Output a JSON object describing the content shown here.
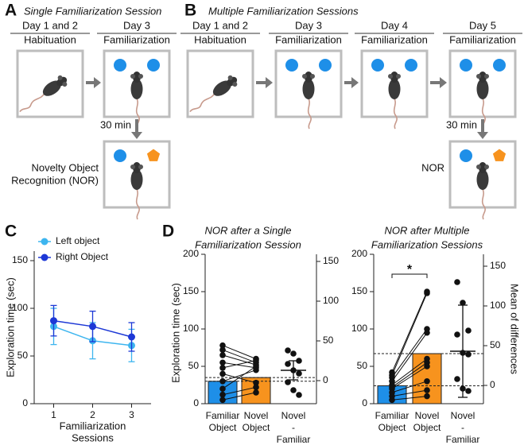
{
  "panel_a": {
    "letter": "A",
    "title": "Single Familiarization Session",
    "stages": [
      {
        "day": "Day 1 and 2",
        "phase": "Habituation"
      },
      {
        "day": "Day 3",
        "phase": "Familiarization"
      }
    ],
    "delay": "30 min",
    "test": [
      "Novelty Object",
      "Recognition (NOR)"
    ]
  },
  "panel_b": {
    "letter": "B",
    "title": "Multiple Familiarization Sessions",
    "stages": [
      {
        "day": "Day 1 and 2",
        "phase": "Habituation"
      },
      {
        "day": "Day 3",
        "phase": "Familiarization"
      },
      {
        "day": "Day 4",
        "phase": "Familiarization"
      },
      {
        "day": "Day 5",
        "phase": "Familiarization"
      }
    ],
    "delay": "30 min",
    "test": [
      "NOR"
    ]
  },
  "panel_c": {
    "letter": "C"
  },
  "panel_d": {
    "letter": "D"
  },
  "chart_data": [
    {
      "type": "line",
      "ylabel": "Exploration time (sec)",
      "xlabel": [
        "Familiarization",
        "Sessions"
      ],
      "x": [
        1,
        2,
        3
      ],
      "xlim": [
        0.5,
        3.5
      ],
      "xticks": [
        1,
        2,
        3
      ],
      "ylim": [
        0,
        160
      ],
      "yticks": [
        0,
        50,
        100,
        150
      ],
      "legend": "upper left",
      "series": [
        {
          "name": "Left object",
          "color": "#3db5ef",
          "values": [
            81,
            66,
            61
          ],
          "errors": [
            19,
            19,
            17
          ]
        },
        {
          "name": "Right Object",
          "color": "#1d38d6",
          "values": [
            87,
            81,
            70
          ],
          "errors": [
            16,
            16,
            15
          ]
        }
      ]
    },
    {
      "type": "paired_bar",
      "title": [
        "NOR after a Single",
        "Familiarization Session"
      ],
      "ylabel": "Exploration time (sec)",
      "categories": [
        [
          "Familiar",
          "Object"
        ],
        [
          "Novel",
          "Object"
        ],
        [
          "Novel",
          "-",
          "Familiar"
        ]
      ],
      "ylim": [
        0,
        200
      ],
      "yticks": [
        0,
        50,
        100,
        150,
        200
      ],
      "y2lim": [
        -29,
        159
      ],
      "y2ticks": [
        0,
        50,
        100,
        150
      ],
      "bars": {
        "colors": [
          "#1e8fe8",
          "#f7931e"
        ],
        "values": [
          30,
          35
        ],
        "points": [
          [
            78,
            72,
            65,
            55,
            48,
            40,
            30,
            20,
            12,
            5
          ],
          [
            60,
            55,
            52,
            48,
            58,
            28,
            45,
            50,
            22,
            15
          ]
        ]
      },
      "difference": {
        "axis": "y2",
        "value": 13,
        "error": 12,
        "points": [
          38,
          34,
          25,
          21,
          13,
          9,
          -2,
          -12,
          -18
        ]
      },
      "mean_lines": true
    },
    {
      "type": "paired_bar",
      "title": [
        "NOR after Multiple",
        "Familiarization Sessions"
      ],
      "y2label": "Mean of differences",
      "categories": [
        [
          "Familiar",
          "Object"
        ],
        [
          "Novel",
          "Object"
        ],
        [
          "Novel",
          "-",
          "Familiar"
        ]
      ],
      "ylim": [
        0,
        200
      ],
      "yticks": [
        0,
        50,
        100,
        150,
        200
      ],
      "y2lim": [
        -23,
        165
      ],
      "y2ticks": [
        0,
        50,
        100,
        150
      ],
      "bars": {
        "colors": [
          "#1e8fe8",
          "#f7931e"
        ],
        "values": [
          24,
          67
        ],
        "points": [
          [
            42,
            38,
            35,
            30,
            25,
            22,
            20,
            15,
            10,
            5
          ],
          [
            150,
            148,
            100,
            95,
            60,
            55,
            50,
            30,
            18,
            10
          ]
        ]
      },
      "difference": {
        "axis": "y2",
        "value": 43,
        "error": 58,
        "points": [
          130,
          104,
          69,
          64,
          41,
          39,
          8,
          -4,
          -7
        ]
      },
      "mean_lines": true,
      "significance": "*"
    }
  ]
}
